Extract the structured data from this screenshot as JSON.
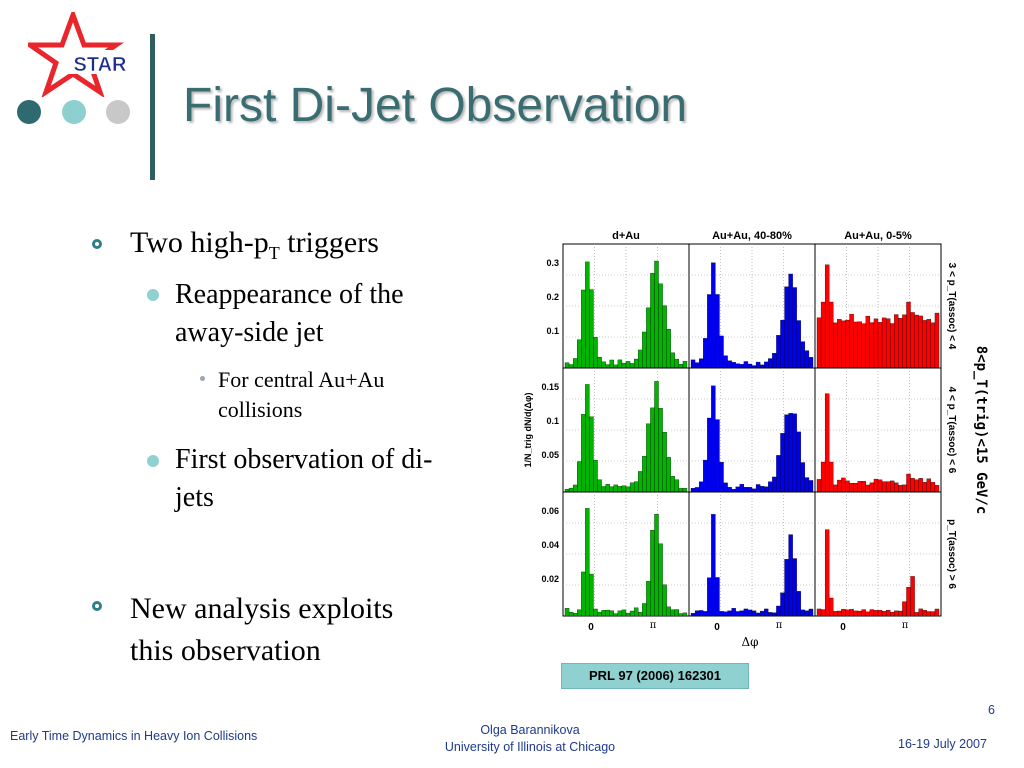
{
  "logo": {
    "text": "STAR"
  },
  "slide": {
    "title": "First Di-Jet Observation"
  },
  "bullets": {
    "b1_main": "Two high-p",
    "b1_sub": "T",
    "b1_rest": " triggers",
    "b1_1_line1": "Reappearance of the",
    "b1_1_line2": "away-side jet",
    "b1_1_1_line1": "For central Au+Au",
    "b1_1_1_line2": "collisions",
    "b1_2_line1": "First observation of di-",
    "b1_2_line2": "jets",
    "b2_line1": "New analysis exploits",
    "b2_line2": "this observation"
  },
  "figure": {
    "col_titles": [
      "d+Au",
      "Au+Au, 40-80%",
      "Au+Au, 0-5%"
    ],
    "row_labels": [
      "3 < p_T(assoc) < 4",
      "4 < p_T(assoc) < 6",
      "p_T(assoc) > 6"
    ],
    "side_label": "8<p_T(trig)<15 GeV/c",
    "y_ticks": [
      [
        "0.3",
        "0.2",
        "0.1"
      ],
      [
        "0.15",
        "0.1",
        "0.05"
      ],
      [
        "0.06",
        "0.04",
        "0.02"
      ]
    ],
    "x_ticks": [
      "0",
      "π"
    ],
    "x_label": "Δφ",
    "y_label": "1/N_trig dN/d(Δφ)",
    "colors": [
      "#00b400",
      "#0000ee",
      "#ff0000"
    ]
  },
  "reference": "PRL 97 (2006) 162301",
  "footer": {
    "left": "Early Time Dynamics in Heavy Ion Collisions",
    "center_line1": "Olga Barannikova",
    "center_line2": "University of Illinois at Chicago",
    "right": "16-19 July 2007",
    "page_number": "6"
  }
}
